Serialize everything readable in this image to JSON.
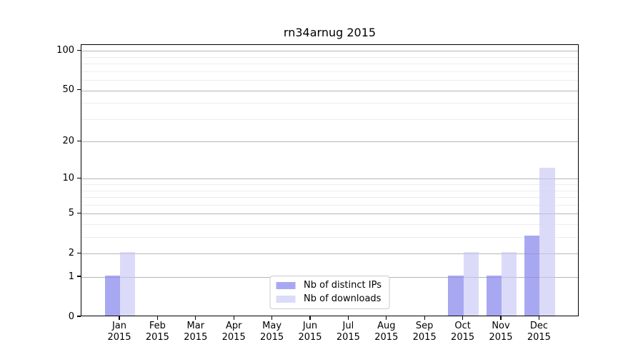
{
  "title": "rn34arnug 2015",
  "chart_data": {
    "type": "bar",
    "title": "rn34arnug 2015",
    "categories": [
      "Jan",
      "Feb",
      "Mar",
      "Apr",
      "May",
      "Jun",
      "Jul",
      "Aug",
      "Sep",
      "Oct",
      "Nov",
      "Dec"
    ],
    "year": "2015",
    "series": [
      {
        "name": "Nb of distinct IPs",
        "values": [
          1,
          0,
          0,
          0,
          0,
          0,
          0,
          0,
          0,
          1,
          1,
          3
        ],
        "color": "#9c9cf0"
      },
      {
        "name": "Nb of downloads",
        "values": [
          2,
          0,
          0,
          0,
          0,
          0,
          0,
          0,
          0,
          2,
          2,
          12
        ],
        "color": "#d6d6f8"
      }
    ],
    "yscale": "log1p",
    "yticks": [
      0,
      1,
      2,
      5,
      10,
      20,
      50,
      100
    ],
    "minor_yticks": [
      3,
      4,
      6,
      7,
      8,
      9,
      30,
      40,
      60,
      70,
      80,
      90
    ],
    "ylim": [
      0,
      110
    ],
    "xlabel": "",
    "ylabel": "",
    "grid": true,
    "legend_position": "lower center"
  },
  "colors": {
    "grid_major": "#c9c9c9",
    "grid_minor": "#ededed",
    "axis": "#000000",
    "background": "#ffffff"
  }
}
